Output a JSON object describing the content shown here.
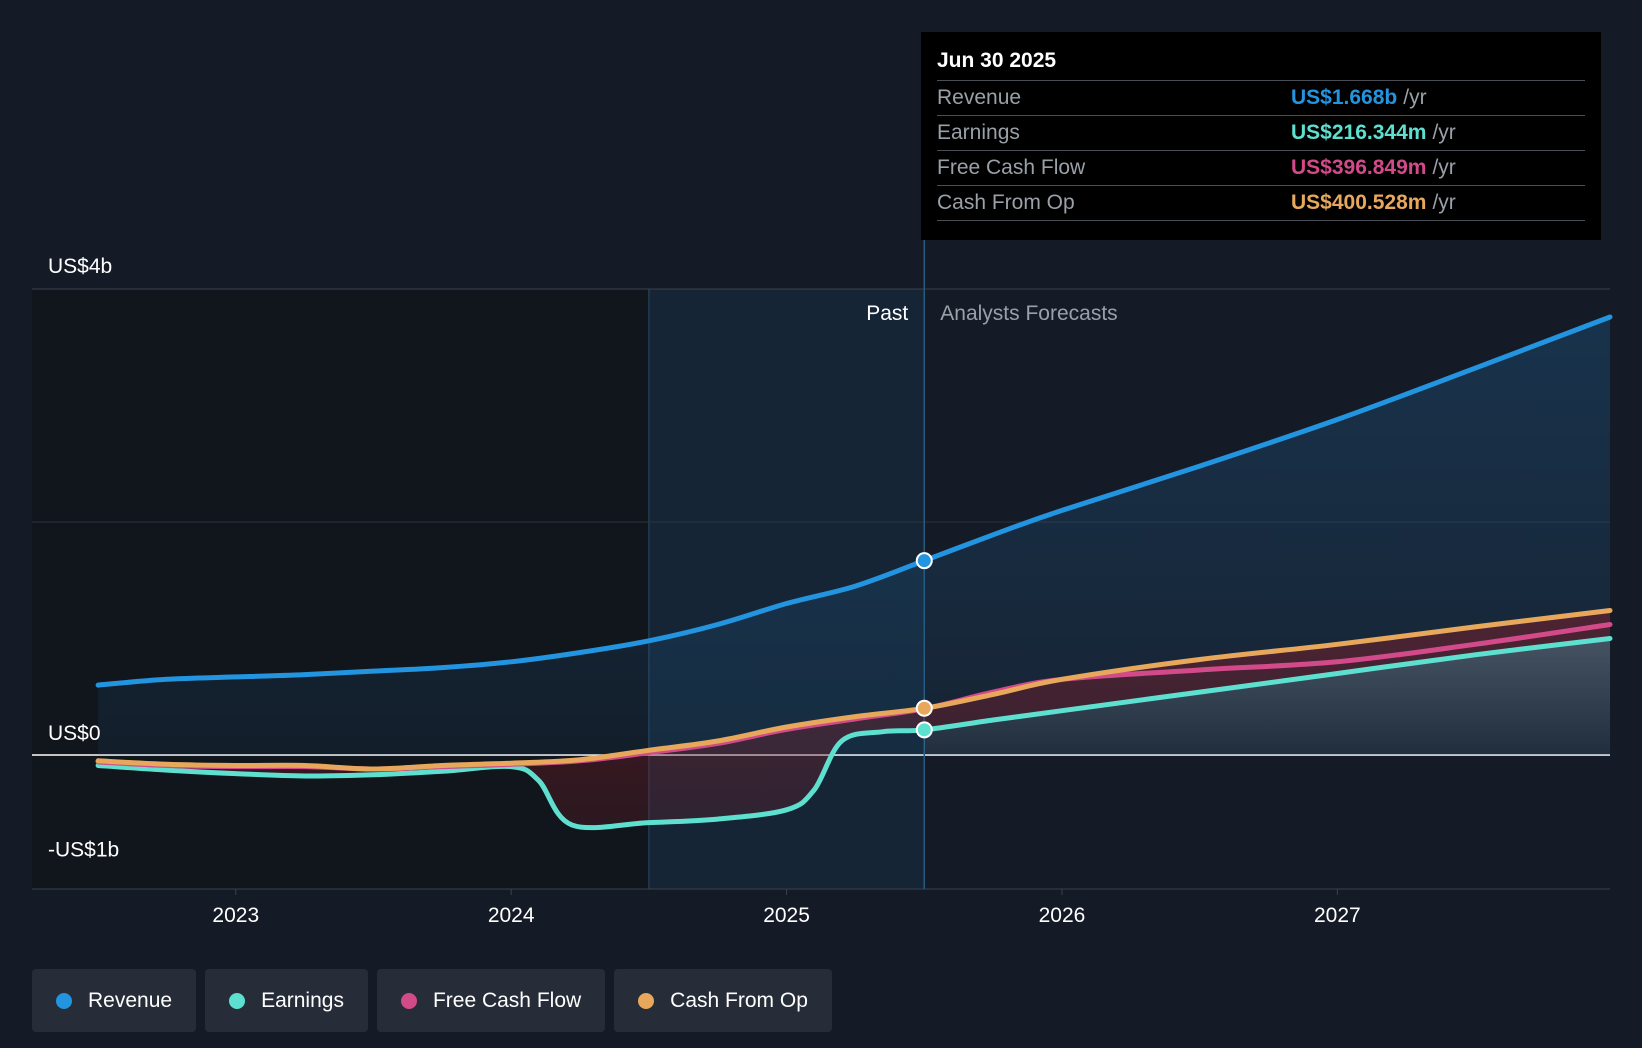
{
  "chart_data": {
    "type": "line",
    "title": "",
    "xlabel": "",
    "ylabel": "",
    "ylim": [
      -1.0,
      4.0
    ],
    "xlim": [
      2022.26,
      2027.99
    ],
    "y_ticks": [
      {
        "value": 4.0,
        "label": "US$4b"
      },
      {
        "value": 0.0,
        "label": "US$0"
      },
      {
        "value": -1.0,
        "label": "-US$1b"
      }
    ],
    "x_ticks": [
      {
        "value": 2023,
        "label": "2023"
      },
      {
        "value": 2024,
        "label": "2024"
      },
      {
        "value": 2025,
        "label": "2025"
      },
      {
        "value": 2026,
        "label": "2026"
      },
      {
        "value": 2027,
        "label": "2027"
      }
    ],
    "divider_x": 2025.5,
    "shade_start_x": 2024.5,
    "past_label": "Past",
    "forecast_label": "Analysts Forecasts",
    "series": [
      {
        "name": "Revenue",
        "color": "#2394df",
        "marker_value": 1.668,
        "points": [
          [
            2022.5,
            0.6
          ],
          [
            2022.75,
            0.65
          ],
          [
            2023.0,
            0.67
          ],
          [
            2023.25,
            0.69
          ],
          [
            2023.5,
            0.72
          ],
          [
            2023.75,
            0.75
          ],
          [
            2024.0,
            0.8
          ],
          [
            2024.25,
            0.88
          ],
          [
            2024.5,
            0.98
          ],
          [
            2024.75,
            1.12
          ],
          [
            2025.0,
            1.3
          ],
          [
            2025.25,
            1.45
          ],
          [
            2025.5,
            1.668
          ],
          [
            2025.75,
            1.89
          ],
          [
            2026.0,
            2.1
          ],
          [
            2026.5,
            2.48
          ],
          [
            2027.0,
            2.88
          ],
          [
            2027.5,
            3.32
          ],
          [
            2027.99,
            3.76
          ]
        ]
      },
      {
        "name": "Earnings",
        "color": "#5de0cf",
        "marker_value": 0.216,
        "points": [
          [
            2022.5,
            -0.09
          ],
          [
            2022.75,
            -0.13
          ],
          [
            2023.0,
            -0.16
          ],
          [
            2023.25,
            -0.18
          ],
          [
            2023.5,
            -0.17
          ],
          [
            2023.75,
            -0.14
          ],
          [
            2024.0,
            -0.1
          ],
          [
            2024.1,
            -0.22
          ],
          [
            2024.22,
            -0.6
          ],
          [
            2024.5,
            -0.58
          ],
          [
            2024.75,
            -0.55
          ],
          [
            2025.0,
            -0.47
          ],
          [
            2025.1,
            -0.3
          ],
          [
            2025.2,
            0.12
          ],
          [
            2025.35,
            0.2
          ],
          [
            2025.5,
            0.216
          ],
          [
            2025.75,
            0.3
          ],
          [
            2026.0,
            0.38
          ],
          [
            2026.5,
            0.54
          ],
          [
            2027.0,
            0.7
          ],
          [
            2027.5,
            0.86
          ],
          [
            2027.99,
            1.0
          ]
        ]
      },
      {
        "name": "Free Cash Flow",
        "color": "#d34a8a",
        "marker_value": 0.397,
        "points": [
          [
            2022.5,
            -0.06
          ],
          [
            2022.75,
            -0.09
          ],
          [
            2023.0,
            -0.1
          ],
          [
            2023.25,
            -0.1
          ],
          [
            2023.5,
            -0.12
          ],
          [
            2023.75,
            -0.1
          ],
          [
            2024.0,
            -0.08
          ],
          [
            2024.25,
            -0.05
          ],
          [
            2024.5,
            0.02
          ],
          [
            2024.75,
            0.1
          ],
          [
            2025.0,
            0.22
          ],
          [
            2025.25,
            0.31
          ],
          [
            2025.5,
            0.397
          ],
          [
            2025.75,
            0.54
          ],
          [
            2026.0,
            0.65
          ],
          [
            2026.5,
            0.73
          ],
          [
            2027.0,
            0.8
          ],
          [
            2027.5,
            0.95
          ],
          [
            2027.99,
            1.12
          ]
        ]
      },
      {
        "name": "Cash From Op",
        "color": "#e8a85c",
        "marker_value": 0.401,
        "points": [
          [
            2022.5,
            -0.05
          ],
          [
            2022.75,
            -0.08
          ],
          [
            2023.0,
            -0.09
          ],
          [
            2023.25,
            -0.09
          ],
          [
            2023.5,
            -0.12
          ],
          [
            2023.75,
            -0.09
          ],
          [
            2024.0,
            -0.07
          ],
          [
            2024.25,
            -0.04
          ],
          [
            2024.5,
            0.04
          ],
          [
            2024.75,
            0.12
          ],
          [
            2025.0,
            0.24
          ],
          [
            2025.25,
            0.33
          ],
          [
            2025.5,
            0.401
          ],
          [
            2025.75,
            0.52
          ],
          [
            2026.0,
            0.65
          ],
          [
            2026.5,
            0.82
          ],
          [
            2027.0,
            0.95
          ],
          [
            2027.5,
            1.1
          ],
          [
            2027.99,
            1.24
          ]
        ]
      }
    ]
  },
  "tooltip": {
    "date": "Jun 30 2025",
    "rows": [
      {
        "name": "Revenue",
        "value": "US$1.668b",
        "unit": "/yr",
        "color": "#2394df"
      },
      {
        "name": "Earnings",
        "value": "US$216.344m",
        "unit": "/yr",
        "color": "#5de0cf"
      },
      {
        "name": "Free Cash Flow",
        "value": "US$396.849m",
        "unit": "/yr",
        "color": "#d34a8a"
      },
      {
        "name": "Cash From Op",
        "value": "US$400.528m",
        "unit": "/yr",
        "color": "#e8a85c"
      }
    ]
  },
  "legend": [
    {
      "label": "Revenue",
      "color": "#2394df"
    },
    {
      "label": "Earnings",
      "color": "#5de0cf"
    },
    {
      "label": "Free Cash Flow",
      "color": "#d34a8a"
    },
    {
      "label": "Cash From Op",
      "color": "#e8a85c"
    }
  ]
}
